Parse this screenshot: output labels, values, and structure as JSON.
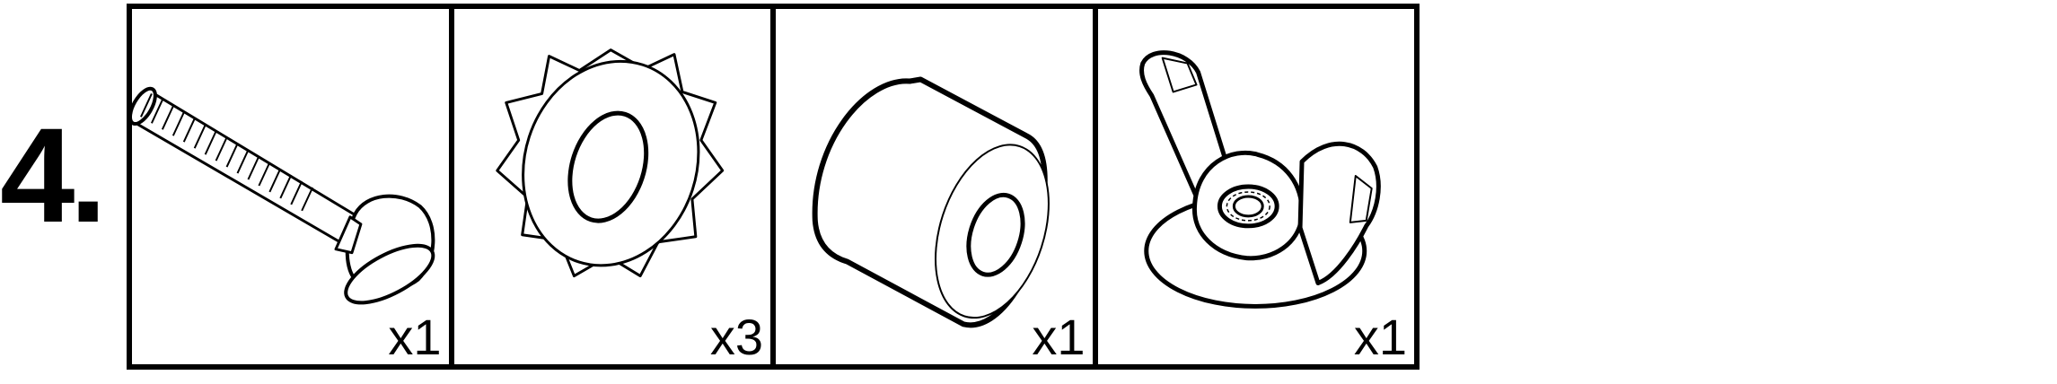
{
  "step": {
    "number": "4."
  },
  "parts": [
    {
      "icon": "carriage-bolt-icon",
      "quantity": "x1"
    },
    {
      "icon": "star-lock-washer-icon",
      "quantity": "x3"
    },
    {
      "icon": "cylindrical-spacer-icon",
      "quantity": "x1"
    },
    {
      "icon": "wing-nut-icon",
      "quantity": "x1"
    }
  ],
  "colors": {
    "ink": "#000000",
    "paper": "#ffffff"
  }
}
